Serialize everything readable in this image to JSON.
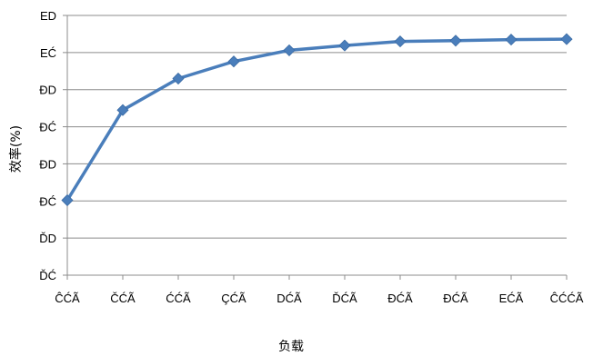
{
  "chart_data": {
    "type": "line",
    "title": "",
    "xlabel": "负载",
    "ylabel": "效率(%)",
    "categories": [
      "ĈĆÃ",
      "ČĆÃ",
      "ĆĆÃ",
      "ÇĆÃ",
      "DĆÃ",
      "ĎĆÃ",
      "ĐĆÃ",
      "ĐĆÃ",
      "EĆÃ",
      "ĈĆĆÃ"
    ],
    "y_tick_labels": [
      "ĎĆ",
      "ĎD",
      "ĐĆ",
      "ĐD",
      "ĐĆ",
      "ĐD",
      "EĆ",
      "ED"
    ],
    "ylim": [
      0,
      7
    ],
    "grid": true,
    "legend": "none",
    "series": [
      {
        "color": "#4a7ebb",
        "marker": "diamond",
        "values": [
          2.02,
          4.45,
          5.3,
          5.76,
          6.06,
          6.19,
          6.3,
          6.32,
          6.35,
          6.36
        ]
      }
    ]
  }
}
